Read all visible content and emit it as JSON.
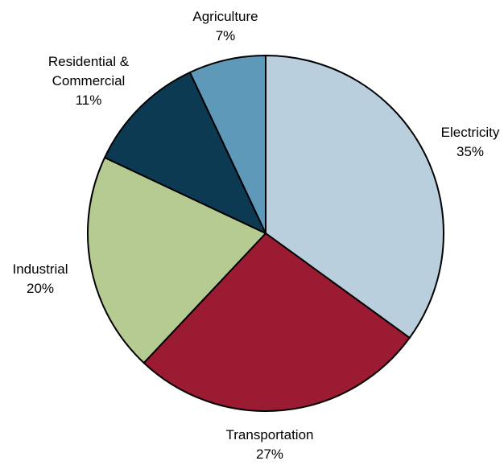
{
  "chart_data": {
    "type": "pie",
    "title": "",
    "legend": "none",
    "start": "12 o'clock, clockwise",
    "slices": [
      {
        "label": "Electricity",
        "value": 35,
        "display": "35%",
        "color": "#b9cfdd"
      },
      {
        "label": "Transportation",
        "value": 27,
        "display": "27%",
        "color": "#9b1b33"
      },
      {
        "label": "Industrial",
        "value": 20,
        "display": "20%",
        "color": "#b5cb91"
      },
      {
        "label": "Residential & Commercial",
        "value": 11,
        "display": "11%",
        "color": "#0c3a52"
      },
      {
        "label": "Agriculture",
        "value": 7,
        "display": "7%",
        "color": "#5e99b9"
      }
    ]
  }
}
